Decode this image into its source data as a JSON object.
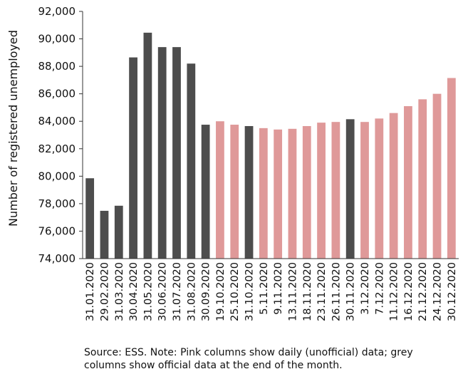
{
  "chart_data": {
    "type": "bar",
    "ylabel": "Number of registered unemployed",
    "xlabel": "",
    "ylim": [
      74000,
      92000
    ],
    "yticks": [
      74000,
      76000,
      78000,
      80000,
      82000,
      84000,
      86000,
      88000,
      90000,
      92000
    ],
    "ytick_labels": [
      "74,000",
      "76,000",
      "78,000",
      "80,000",
      "82,000",
      "84,000",
      "86,000",
      "88,000",
      "90,000",
      "92,000"
    ],
    "grid": false,
    "colors": {
      "official": "#4d4d4d",
      "daily": "#df9999"
    },
    "categories": [
      "31.01.2020",
      "29.02.2020",
      "31.03.2020",
      "30.04.2020",
      "31.05.2020",
      "30.06.2020",
      "31.07.2020",
      "31.08.2020",
      "30.09.2020",
      "19.10.2020",
      "25.10.2020",
      "31.10.2020",
      "5.11.2020",
      "9.11.2020",
      "13.11.2020",
      "18.11.2020",
      "23.11.2020",
      "26.11.2020",
      "30.11.2020",
      "3.12.2020",
      "7.12.2020",
      "11.12.2020",
      "16.12.2020",
      "21.12.2020",
      "24.12.2020",
      "30.12.2020"
    ],
    "values": [
      79850,
      77480,
      77850,
      88650,
      90450,
      89400,
      89400,
      88200,
      83750,
      84000,
      83750,
      83650,
      83500,
      83400,
      83450,
      83650,
      83900,
      83950,
      84150,
      83950,
      84200,
      84600,
      85100,
      85600,
      86000,
      87150
    ],
    "types": [
      "official",
      "official",
      "official",
      "official",
      "official",
      "official",
      "official",
      "official",
      "official",
      "daily",
      "daily",
      "official",
      "daily",
      "daily",
      "daily",
      "daily",
      "daily",
      "daily",
      "official",
      "daily",
      "daily",
      "daily",
      "daily",
      "daily",
      "daily",
      "daily"
    ],
    "note": "Source: ESS. Note: Pink columns show daily (unofficial) data; grey columns show official data at the end of the month."
  }
}
